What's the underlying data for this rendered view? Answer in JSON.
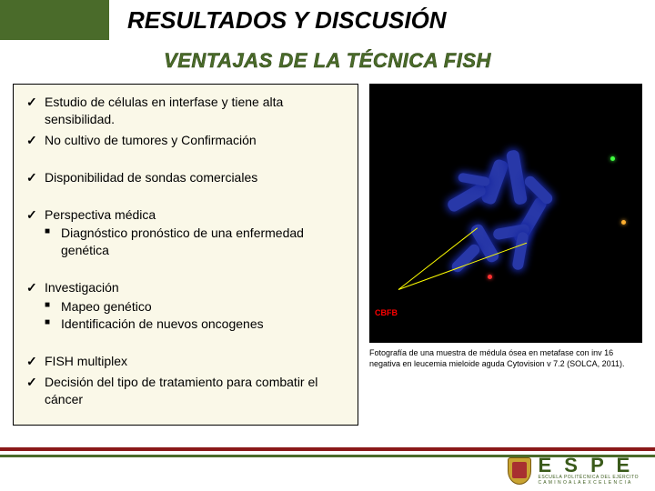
{
  "title": "RESULTADOS Y DISCUSIÓN",
  "subtitle": "VENTAJAS DE LA TÉCNICA FISH",
  "advantages": [
    {
      "text": "Estudio de células en interfase y tiene alta sensibilidad."
    },
    {
      "text": "No cultivo de tumores  y Confirmación"
    },
    {
      "text": "Disponibilidad de sondas comerciales"
    },
    {
      "text": "Perspectiva médica",
      "sub": [
        "Diagnóstico pronóstico de una enfermedad genética"
      ]
    },
    {
      "text": "Investigación",
      "sub": [
        "Mapeo genético",
        "Identificación de nuevos oncogenes"
      ]
    },
    {
      "text": "FISH multiplex"
    },
    {
      "text": "Decisión del tipo de tratamiento para combatir el cáncer"
    }
  ],
  "gap_after": [
    1,
    2,
    3,
    4
  ],
  "image": {
    "label": "CBFB",
    "caption": "Fotografía de una muestra de médula ósea en metafase con inv 16 negativa en leucemia  mieloide aguda Cytovision v 7.2 (SOLCA, 2011).",
    "bg": "#000000",
    "chrom_color": "#2838a8",
    "arrow_color": "#ffff00",
    "dot_colors": {
      "green": "#40ff40",
      "red": "#ff3030",
      "orange": "#ffb030"
    }
  },
  "colors": {
    "accent_green": "#4a6b2a",
    "accent_red": "#8a1818",
    "panel_bg": "#faf8e8",
    "text": "#000000"
  },
  "logo": {
    "acronym": "E S P E",
    "line1": "ESCUELA POLITÉCNICA DEL EJÉRCITO",
    "line2": "C A M I N O   A   L A   E X C E L E N C I A"
  }
}
